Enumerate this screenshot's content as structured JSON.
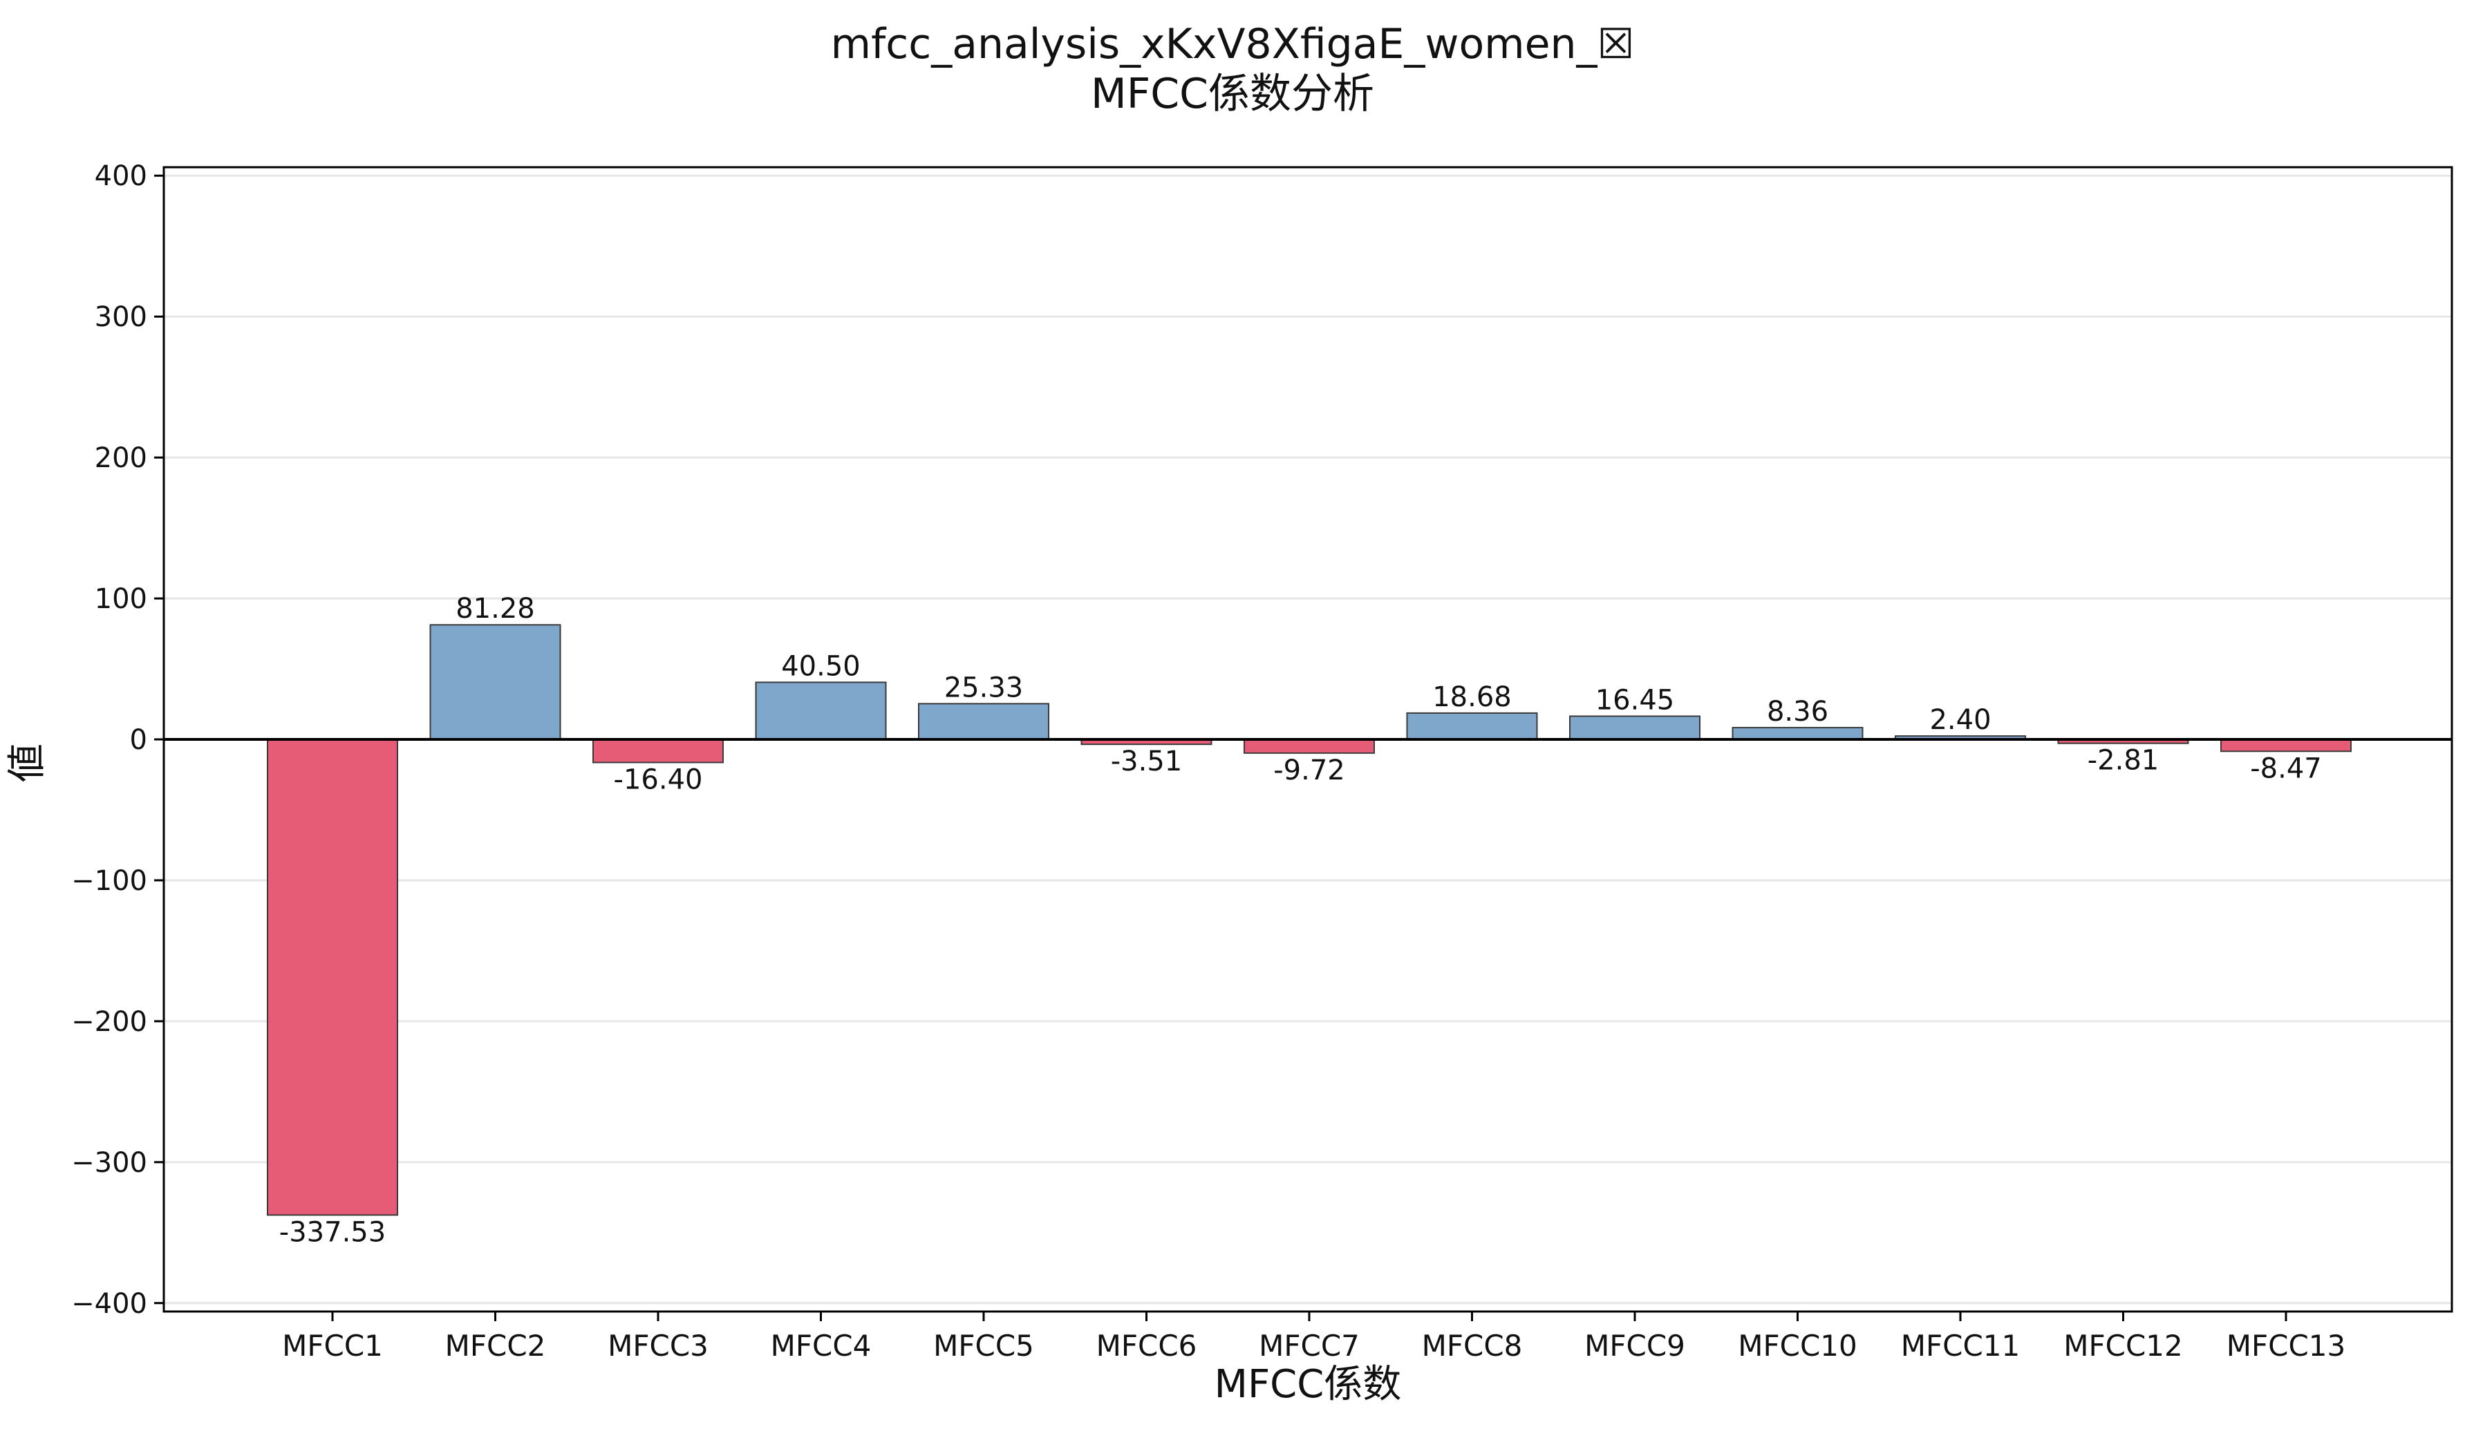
{
  "chart_data": {
    "type": "bar",
    "title_line1": "mfcc_analysis_xKxV8XfigaE_women_☒",
    "title_line2": "MFCC係数分析",
    "xlabel": "MFCC係数",
    "ylabel": "値",
    "categories": [
      "MFCC1",
      "MFCC2",
      "MFCC3",
      "MFCC4",
      "MFCC5",
      "MFCC6",
      "MFCC7",
      "MFCC8",
      "MFCC9",
      "MFCC10",
      "MFCC11",
      "MFCC12",
      "MFCC13"
    ],
    "values": [
      -337.53,
      81.28,
      -16.4,
      40.5,
      25.33,
      -3.51,
      -9.72,
      18.68,
      16.45,
      8.36,
      2.4,
      -2.81,
      -8.47
    ],
    "data_labels": [
      "-337.53",
      "81.28",
      "-16.40",
      "40.50",
      "25.33",
      "-3.51",
      "-9.72",
      "18.68",
      "16.45",
      "8.36",
      "2.40",
      "-2.81",
      "-8.47"
    ],
    "yticks": [
      400,
      300,
      200,
      100,
      0,
      -100,
      -200,
      -300,
      -400
    ],
    "ytick_labels": [
      "400",
      "300",
      "200",
      "100",
      "0",
      "−100",
      "−200",
      "−300",
      "−400"
    ],
    "ylim": [
      -406,
      406
    ],
    "grid": "horizontal",
    "colors": {
      "positive": "#7ea7cb",
      "negative": "#e65c77",
      "edge": "#3a3a3a",
      "grid": "#e6e6e6",
      "zero_line": "#000000"
    }
  }
}
